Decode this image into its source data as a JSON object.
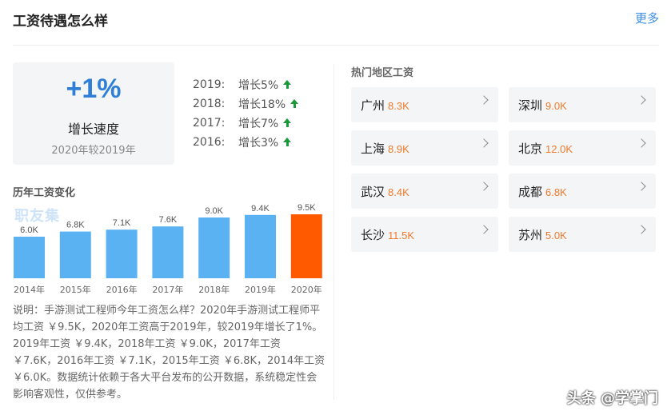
{
  "header": {
    "title": "工资待遇怎么样",
    "more_label": "更多"
  },
  "growth": {
    "value": "+1%",
    "label": "增长速度",
    "sub": "2020年较2019年"
  },
  "yearly": [
    {
      "year": "2019:",
      "rate": "增长5%"
    },
    {
      "year": "2018:",
      "rate": "增长18%"
    },
    {
      "year": "2017:",
      "rate": "增长7%"
    },
    {
      "year": "2016:",
      "rate": "增长3%"
    }
  ],
  "history": {
    "title": "历年工资变化",
    "watermark": "职友集"
  },
  "chart_data": {
    "type": "bar",
    "categories": [
      "2014年",
      "2015年",
      "2016年",
      "2017年",
      "2018年",
      "2019年",
      "2020年"
    ],
    "values": [
      6.0,
      6.8,
      7.1,
      7.6,
      9.0,
      9.4,
      9.5
    ],
    "data_labels": [
      "6.0K",
      "6.8K",
      "7.1K",
      "7.6K",
      "9.0K",
      "9.4K",
      "9.5K"
    ],
    "title": "",
    "xlabel": "",
    "ylabel": "",
    "colors": {
      "default": "#5bb2f2",
      "highlight": "#ff5a00"
    },
    "highlight_index": 6,
    "grid": false
  },
  "description": "说明：手游测试工程师今年工资怎么样？2020年手游测试工程师平均工资 ￥9.5K，2020年工资高于2019年，较2019年增长了1%。2019年工资 ￥9.4K，2018年工资 ￥9.0K，2017年工资 ￥7.6K，2016年工资 ￥7.1K，2015年工资 ￥6.8K，2014年工资 ￥6.0K。数据统计依赖于各大平台发布的公开数据，系统稳定性会影响客观性，仅供参考。",
  "regions": {
    "title": "热门地区工资",
    "items": [
      {
        "city": "广州",
        "salary": "8.3K"
      },
      {
        "city": "深圳",
        "salary": "9.0K"
      },
      {
        "city": "上海",
        "salary": "8.9K"
      },
      {
        "city": "北京",
        "salary": "12.0K"
      },
      {
        "city": "武汉",
        "salary": "8.4K"
      },
      {
        "city": "成都",
        "salary": "6.8K"
      },
      {
        "city": "长沙",
        "salary": "11.5K"
      },
      {
        "city": "苏州",
        "salary": "5.0K"
      }
    ]
  },
  "footer": {
    "watermark": "头条 @学掌门"
  },
  "colors": {
    "accent_blue": "#2f7fd6",
    "up_green": "#1a9a3a",
    "salary_orange": "#f07a2a"
  }
}
